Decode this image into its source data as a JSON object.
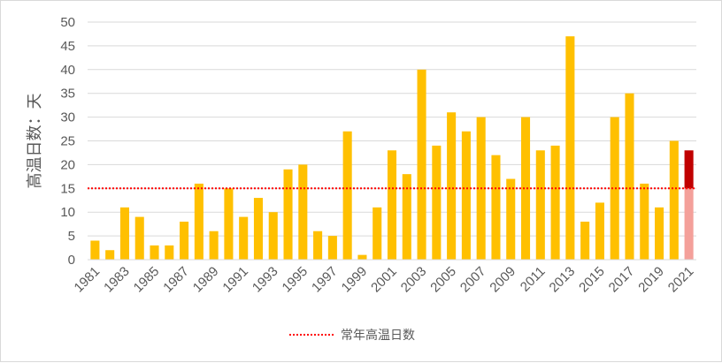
{
  "chart_data": {
    "type": "bar",
    "title": "",
    "xlabel": "",
    "ylabel": "高温日数：天",
    "ylim": [
      0,
      50
    ],
    "yticks": [
      0,
      5,
      10,
      15,
      20,
      25,
      30,
      35,
      40,
      45,
      50
    ],
    "grid": "horizontal",
    "categories": [
      "1981",
      "1982",
      "1983",
      "1984",
      "1985",
      "1986",
      "1987",
      "1988",
      "1989",
      "1990",
      "1991",
      "1992",
      "1993",
      "1994",
      "1995",
      "1996",
      "1997",
      "1998",
      "1999",
      "2000",
      "2001",
      "2002",
      "2003",
      "2004",
      "2005",
      "2006",
      "2007",
      "2008",
      "2009",
      "2010",
      "2011",
      "2012",
      "2013",
      "2014",
      "2015",
      "2016",
      "2017",
      "2018",
      "2019",
      "2020",
      "2021"
    ],
    "xtick_labels": [
      "1981",
      "1983",
      "1985",
      "1987",
      "1989",
      "1991",
      "1993",
      "1995",
      "1997",
      "1999",
      "2001",
      "2003",
      "2005",
      "2007",
      "2009",
      "2011",
      "2013",
      "2015",
      "2017",
      "2019",
      "2021"
    ],
    "values": [
      4,
      2,
      11,
      9,
      3,
      3,
      8,
      16,
      6,
      15,
      9,
      13,
      10,
      19,
      20,
      6,
      5,
      27,
      1,
      11,
      23,
      18,
      40,
      24,
      31,
      27,
      30,
      22,
      17,
      30,
      23,
      24,
      47,
      8,
      12,
      30,
      35,
      16,
      11,
      25,
      23
    ],
    "highlight": {
      "category": "2021",
      "below_normal_color": "#F4A09A",
      "above_normal_color": "#C00000"
    },
    "bar_color": "#FFC000",
    "reference_line": {
      "name": "常年高温日数",
      "value": 15,
      "color": "#FF0000",
      "style": "dotted"
    },
    "legend": {
      "position": "bottom",
      "entries": [
        "常年高温日数"
      ]
    }
  }
}
